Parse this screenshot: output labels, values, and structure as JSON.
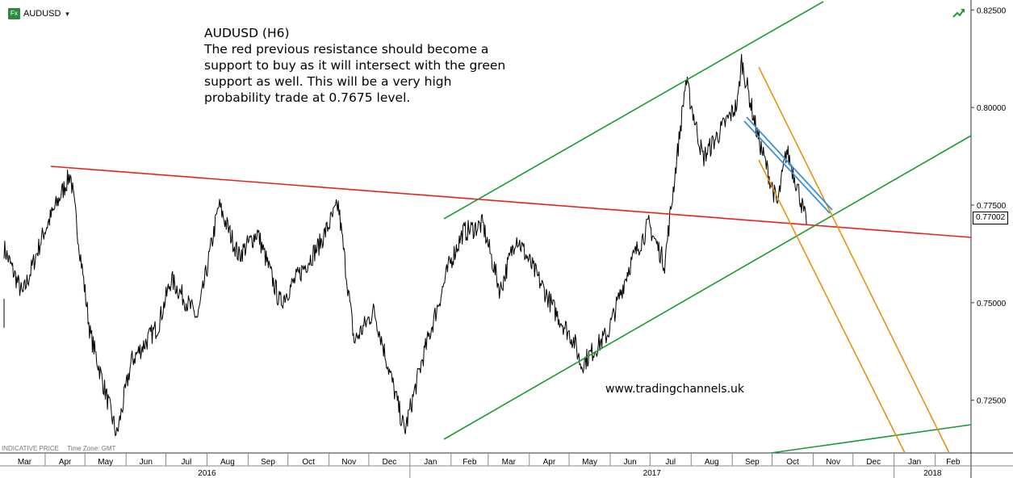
{
  "header": {
    "instrument": "AUDUSD",
    "fx_badge": "Fx",
    "dropdown_icon": "chevron-down-icon",
    "trend_icon": "trend-up-icon"
  },
  "annotation": {
    "lines": [
      "AUDUSD (H6)",
      "The red previous resistance should become a",
      "support to buy as it will intersect with the green",
      "support as well. This will be a very high",
      "probability trade at 0.7675 level."
    ]
  },
  "watermark": "www.tradingchannels.uk",
  "footnote": {
    "price_type": "INDICATIVE PRICE",
    "time_zone": "Time Zone: GMT"
  },
  "colors": {
    "price": "#000000",
    "resistance": "#e8231e",
    "channel": "#1e9a34",
    "down_channel": "#e8920f",
    "short_trend": "#3a8fd6"
  },
  "chart_data": {
    "type": "line",
    "title": "AUDUSD",
    "timeframe": "H6",
    "xlabel": "",
    "ylabel": "",
    "ylim": [
      0.7115,
      0.8265
    ],
    "y_ticks": [
      "0.82500",
      "0.80000",
      "0.77500",
      "0.75000",
      "0.72500"
    ],
    "last_price": "0.77002",
    "x_month_labels": [
      "Mar",
      "Apr",
      "May",
      "Jun",
      "Jul",
      "Aug",
      "Sep",
      "Oct",
      "Nov",
      "Dec",
      "Jan",
      "Feb",
      "Mar",
      "Apr",
      "May",
      "Jun",
      "Jul",
      "Aug",
      "Sep",
      "Oct",
      "Nov",
      "Dec",
      "Jan",
      "Feb"
    ],
    "x_year_labels": [
      "2016",
      "2017",
      "2018"
    ],
    "date_range": [
      "2016-03-01",
      "2018-02-28"
    ],
    "grid": false,
    "price_series": {
      "name": "AUDUSD",
      "points": [
        {
          "date": "2016-03-01",
          "value": 0.764
        },
        {
          "date": "2016-03-15",
          "value": 0.752
        },
        {
          "date": "2016-03-31",
          "value": 0.768
        },
        {
          "date": "2016-04-20",
          "value": 0.783
        },
        {
          "date": "2016-05-05",
          "value": 0.742
        },
        {
          "date": "2016-05-25",
          "value": 0.716
        },
        {
          "date": "2016-06-05",
          "value": 0.735
        },
        {
          "date": "2016-06-25",
          "value": 0.744
        },
        {
          "date": "2016-07-05",
          "value": 0.756
        },
        {
          "date": "2016-07-25",
          "value": 0.746
        },
        {
          "date": "2016-08-10",
          "value": 0.775
        },
        {
          "date": "2016-08-25",
          "value": 0.762
        },
        {
          "date": "2016-09-08",
          "value": 0.768
        },
        {
          "date": "2016-09-25",
          "value": 0.75
        },
        {
          "date": "2016-10-05",
          "value": 0.755
        },
        {
          "date": "2016-10-25",
          "value": 0.765
        },
        {
          "date": "2016-11-08",
          "value": 0.775
        },
        {
          "date": "2016-11-20",
          "value": 0.74
        },
        {
          "date": "2016-12-05",
          "value": 0.748
        },
        {
          "date": "2016-12-28",
          "value": 0.717
        },
        {
          "date": "2017-01-10",
          "value": 0.735
        },
        {
          "date": "2017-01-31",
          "value": 0.76
        },
        {
          "date": "2017-02-10",
          "value": 0.768
        },
        {
          "date": "2017-02-25",
          "value": 0.77
        },
        {
          "date": "2017-03-10",
          "value": 0.753
        },
        {
          "date": "2017-03-22",
          "value": 0.767
        },
        {
          "date": "2017-04-05",
          "value": 0.758
        },
        {
          "date": "2017-04-20",
          "value": 0.748
        },
        {
          "date": "2017-05-05",
          "value": 0.74
        },
        {
          "date": "2017-05-10",
          "value": 0.734
        },
        {
          "date": "2017-05-30",
          "value": 0.742
        },
        {
          "date": "2017-06-15",
          "value": 0.759
        },
        {
          "date": "2017-06-30",
          "value": 0.77
        },
        {
          "date": "2017-07-12",
          "value": 0.76
        },
        {
          "date": "2017-07-25",
          "value": 0.798
        },
        {
          "date": "2017-07-28",
          "value": 0.807
        },
        {
          "date": "2017-08-10",
          "value": 0.787
        },
        {
          "date": "2017-08-25",
          "value": 0.795
        },
        {
          "date": "2017-09-05",
          "value": 0.801
        },
        {
          "date": "2017-09-08",
          "value": 0.812
        },
        {
          "date": "2017-09-20",
          "value": 0.793
        },
        {
          "date": "2017-10-05",
          "value": 0.775
        },
        {
          "date": "2017-10-12",
          "value": 0.789
        },
        {
          "date": "2017-10-20",
          "value": 0.78
        },
        {
          "date": "2017-10-27",
          "value": 0.77
        }
      ]
    }
  }
}
